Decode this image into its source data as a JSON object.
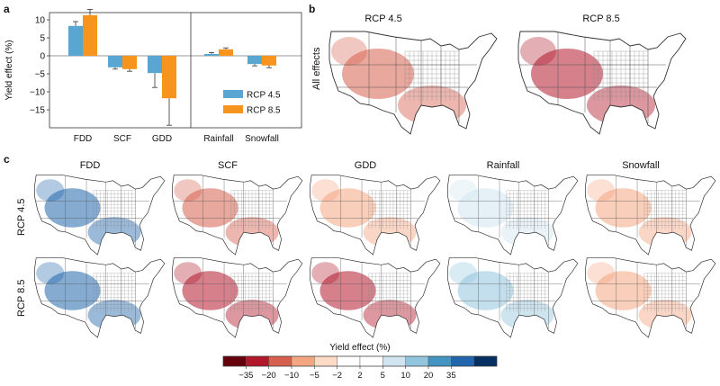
{
  "panels": {
    "a": "a",
    "b": "b",
    "c": "c"
  },
  "chart_data": {
    "type": "bar",
    "ylabel": "Yield effect (%)",
    "ylim": [
      -20,
      12
    ],
    "yticks": [
      "10",
      "5",
      "0",
      "−5",
      "−10",
      "−15"
    ],
    "ytick_values": [
      10,
      5,
      0,
      -5,
      -10,
      -15
    ],
    "categories": [
      "FDD",
      "SCF",
      "GDD",
      "Rainfall",
      "Snowfall"
    ],
    "series": [
      {
        "name": "RCP 4.5",
        "color": "#5aa6d2",
        "values": [
          8.3,
          -3.2,
          -4.8,
          0.5,
          -2.3
        ],
        "error": [
          1.2,
          0.5,
          4.0,
          0.4,
          0.5
        ]
      },
      {
        "name": "RCP 8.5",
        "color": "#f7941d",
        "values": [
          11.3,
          -3.7,
          -11.8,
          1.8,
          -2.7
        ],
        "error": [
          1.6,
          0.6,
          7.5,
          0.4,
          0.6
        ]
      }
    ],
    "legend_position": "lower-right"
  },
  "panel_b": {
    "row_label": "All effects",
    "titles": [
      "RCP 4.5",
      "RCP 8.5"
    ]
  },
  "panel_c": {
    "columns": [
      "FDD",
      "SCF",
      "GDD",
      "Rainfall",
      "Snowfall"
    ],
    "rows": [
      "RCP 4.5",
      "RCP 8.5"
    ]
  },
  "colorbar": {
    "title": "Yield effect (%)",
    "labels": [
      "−35",
      "−20",
      "−10",
      "−5",
      "−2",
      "2",
      "5",
      "10",
      "20",
      "35"
    ],
    "colors": [
      "#67000d",
      "#b2182b",
      "#d6604d",
      "#f4a582",
      "#fddbc7",
      "#ffffff",
      "#ffffff",
      "#d1e5f0",
      "#92c5de",
      "#4393c3",
      "#2166ac",
      "#053061"
    ]
  },
  "map_shading": {
    "b": [
      "#d6604d",
      "#b2182b"
    ],
    "c": [
      [
        "#2166ac",
        "#d6604d",
        "#f4a582",
        "#d1e5f0",
        "#f4a582"
      ],
      [
        "#2166ac",
        "#b2182b",
        "#b2182b",
        "#92c5de",
        "#f4a582"
      ]
    ]
  }
}
